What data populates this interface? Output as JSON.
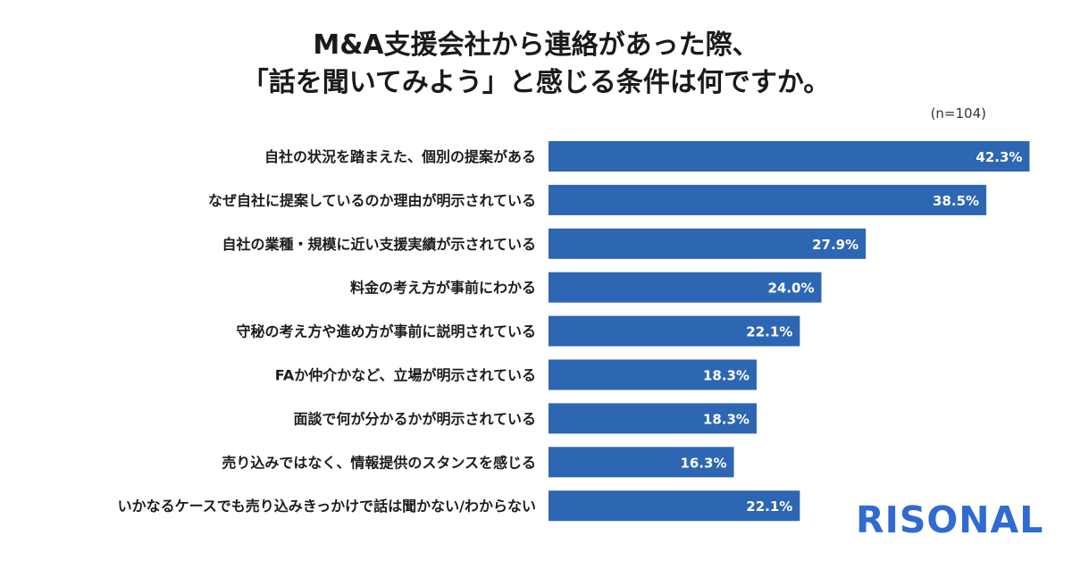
{
  "title_lines": [
    "M&A支援会社から連絡があった際、",
    "「話を聞いてみよう」と感じる条件は何ですか。"
  ],
  "sample_size": "(n=104)",
  "logo_text": "RISONAL",
  "colors": {
    "bar": "#2d66b3",
    "bar_label": "#ffffff",
    "category_text": "#1c1c1c",
    "logo": "#2f6bd1"
  },
  "chart_data": {
    "type": "bar",
    "orientation": "horizontal",
    "title": "M&A支援会社から連絡があった際、「話を聞いてみよう」と感じる条件は何ですか。",
    "xlabel": "",
    "ylabel": "",
    "unit": "%",
    "xlim": [
      0,
      50
    ],
    "grid": false,
    "categories": [
      "自社の状況を踏まえた、個別の提案がある",
      "なぜ自社に提案しているのか理由が明示されている",
      "自社の業種・規模に近い支援実績が示されている",
      "料金の考え方が事前にわかる",
      "守秘の考え方や進め方が事前に説明されている",
      "FAか仲介かなど、立場が明示されている",
      "面談で何が分かるかが明示されている",
      "売り込みではなく、情報提供のスタンスを感じる",
      "いかなるケースでも売り込みきっかけで話は聞かない/わからない"
    ],
    "values": [
      42.3,
      38.5,
      27.9,
      24.0,
      22.1,
      18.3,
      18.3,
      16.3,
      22.1
    ],
    "value_labels": [
      "42.3%",
      "38.5%",
      "27.9%",
      "24.0%",
      "22.1%",
      "18.3%",
      "18.3%",
      "16.3%",
      "22.1%"
    ]
  }
}
